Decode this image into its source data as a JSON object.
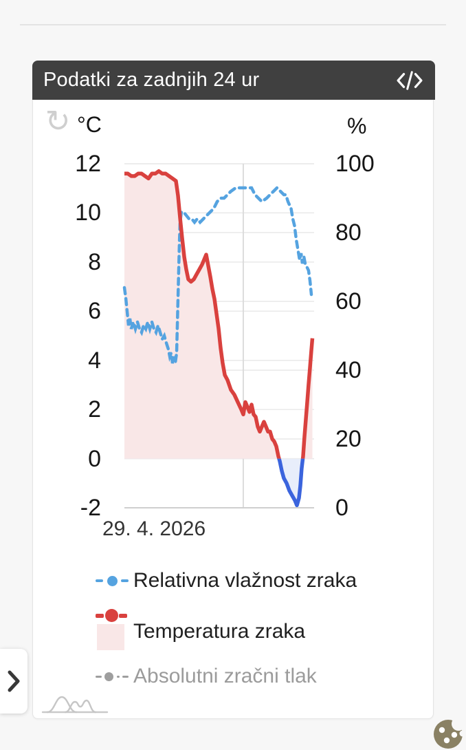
{
  "colors": {
    "header_bg": "#404040",
    "humidity": "#55a3e0",
    "temperature": "#d9413e",
    "temp_below_zero": "#3b64dd",
    "temp_fill": "#f9e7e7",
    "temp_fill_below": "#e8eefb",
    "disabled": "#9e9e9e",
    "grid": "#e9e9e9",
    "grid_dark": "#cfcfcf",
    "cookie": "#8a8164"
  },
  "card": {
    "header": {
      "title": "Podatki za zadnjih 24 ur"
    },
    "axes": {
      "left_unit": "°C",
      "right_unit": "%",
      "left_ticks": [
        12,
        10,
        8,
        6,
        4,
        2,
        0,
        -2
      ],
      "right_ticks": [
        100,
        80,
        60,
        40,
        20,
        0
      ],
      "x_label": "29. 4. 2026"
    },
    "legend": [
      {
        "label": "Relativna vlažnost zraka",
        "disabled": false
      },
      {
        "label": "Temperatura zraka",
        "disabled": false
      },
      {
        "label": "Absolutni zračni tlak",
        "disabled": true
      }
    ]
  },
  "chart_data": {
    "type": "line",
    "title": "Podatki za zadnjih 24 ur",
    "x_unit": "hours in 24h window",
    "x_date_line_hour": 15.04,
    "x_date_label": "29. 4. 2026",
    "ylim_left": [
      -2,
      12
    ],
    "ylim_right": [
      0,
      100
    ],
    "grid": true,
    "legend_position": "bottom",
    "series": [
      {
        "name": "Relativna vlažnost zraka",
        "unit": "%",
        "axis": "right",
        "style": "dashed",
        "points": [
          [
            0,
            64
          ],
          [
            0.17,
            61
          ],
          [
            0.35,
            57
          ],
          [
            0.52,
            53
          ],
          [
            0.7,
            55
          ],
          [
            0.87,
            52
          ],
          [
            1.13,
            54
          ],
          [
            1.39,
            52
          ],
          [
            1.65,
            54
          ],
          [
            1.91,
            52
          ],
          [
            2.17,
            51
          ],
          [
            2.43,
            53
          ],
          [
            2.7,
            52
          ],
          [
            2.96,
            54
          ],
          [
            3.22,
            52
          ],
          [
            3.48,
            54
          ],
          [
            3.74,
            52
          ],
          [
            4,
            51
          ],
          [
            4.26,
            53
          ],
          [
            4.52,
            51
          ],
          [
            4.78,
            49
          ],
          [
            5.04,
            50
          ],
          [
            5.3,
            48
          ],
          [
            5.57,
            46
          ],
          [
            5.74,
            44
          ],
          [
            5.91,
            45
          ],
          [
            6.09,
            42
          ],
          [
            6.26,
            44
          ],
          [
            6.43,
            42
          ],
          [
            6.61,
            45
          ],
          [
            6.7,
            53
          ],
          [
            6.78,
            61
          ],
          [
            6.87,
            69
          ],
          [
            6.96,
            77
          ],
          [
            7.04,
            83
          ],
          [
            7.22,
            86
          ],
          [
            7.48,
            86
          ],
          [
            7.83,
            85
          ],
          [
            8.17,
            84
          ],
          [
            8.52,
            84
          ],
          [
            8.87,
            83
          ],
          [
            9.22,
            84
          ],
          [
            9.57,
            83
          ],
          [
            10,
            84
          ],
          [
            10.43,
            85
          ],
          [
            10.87,
            86
          ],
          [
            11.3,
            87
          ],
          [
            11.74,
            89
          ],
          [
            12.17,
            90
          ],
          [
            12.61,
            90
          ],
          [
            13.04,
            91
          ],
          [
            13.48,
            92
          ],
          [
            14.09,
            93
          ],
          [
            14.7,
            93
          ],
          [
            15.22,
            93
          ],
          [
            15.65,
            93
          ],
          [
            16.09,
            93
          ],
          [
            16.52,
            91
          ],
          [
            16.96,
            90
          ],
          [
            17.39,
            89
          ],
          [
            18,
            90
          ],
          [
            18.43,
            91
          ],
          [
            18.87,
            92
          ],
          [
            19.3,
            93
          ],
          [
            19.74,
            92
          ],
          [
            20.17,
            91
          ],
          [
            20.43,
            91
          ],
          [
            20.7,
            89
          ],
          [
            21.09,
            87
          ],
          [
            21.3,
            84
          ],
          [
            21.52,
            82
          ],
          [
            21.74,
            78
          ],
          [
            21.96,
            75
          ],
          [
            22.17,
            72
          ],
          [
            22.35,
            74
          ],
          [
            22.52,
            71
          ],
          [
            22.7,
            73
          ],
          [
            22.87,
            71
          ],
          [
            23.09,
            70
          ],
          [
            23.3,
            69
          ],
          [
            23.48,
            66
          ],
          [
            23.65,
            62
          ]
        ]
      },
      {
        "name": "Temperatura zraka",
        "unit": "°C",
        "axis": "left",
        "style": "solid, filled to zero, blue below zero",
        "points": [
          [
            0,
            11.6
          ],
          [
            0.43,
            11.6
          ],
          [
            0.87,
            11.5
          ],
          [
            1.3,
            11.5
          ],
          [
            1.74,
            11.6
          ],
          [
            2.17,
            11.6
          ],
          [
            2.61,
            11.5
          ],
          [
            3.04,
            11.4
          ],
          [
            3.48,
            11.6
          ],
          [
            3.91,
            11.6
          ],
          [
            4.35,
            11.7
          ],
          [
            4.78,
            11.6
          ],
          [
            5.22,
            11.6
          ],
          [
            5.65,
            11.5
          ],
          [
            6.09,
            11.4
          ],
          [
            6.52,
            11.3
          ],
          [
            6.78,
            10.7
          ],
          [
            7.04,
            9.8
          ],
          [
            7.3,
            9
          ],
          [
            7.57,
            8.2
          ],
          [
            7.83,
            7.7
          ],
          [
            8.09,
            7.3
          ],
          [
            8.43,
            7.2
          ],
          [
            8.78,
            7.3
          ],
          [
            9.13,
            7.5
          ],
          [
            9.48,
            7.7
          ],
          [
            9.83,
            7.9
          ],
          [
            10.09,
            8.1
          ],
          [
            10.35,
            8.3
          ],
          [
            10.87,
            7.4
          ],
          [
            11.13,
            6.9
          ],
          [
            11.39,
            6.5
          ],
          [
            11.65,
            5.9
          ],
          [
            11.91,
            5.3
          ],
          [
            12.17,
            4.5
          ],
          [
            12.43,
            3.9
          ],
          [
            12.7,
            3.4
          ],
          [
            13.04,
            3.2
          ],
          [
            13.48,
            2.8
          ],
          [
            13.91,
            2.6
          ],
          [
            14.35,
            2.3
          ],
          [
            14.78,
            2
          ],
          [
            15.04,
            1.8
          ],
          [
            15.3,
            2.3
          ],
          [
            15.57,
            2.1
          ],
          [
            15.83,
            1.9
          ],
          [
            16.09,
            2.2
          ],
          [
            16.35,
            1.8
          ],
          [
            16.61,
            1.7
          ],
          [
            16.87,
            1.3
          ],
          [
            17.13,
            1.1
          ],
          [
            17.39,
            1.3
          ],
          [
            17.65,
            1.5
          ],
          [
            17.91,
            1.3
          ],
          [
            18.17,
            1.1
          ],
          [
            18.43,
            1.1
          ],
          [
            18.7,
            0.8
          ],
          [
            18.96,
            0.7
          ],
          [
            19.22,
            0.5
          ],
          [
            19.48,
            0.1
          ],
          [
            19.65,
            -0.1
          ],
          [
            19.91,
            -0.5
          ],
          [
            20.17,
            -0.8
          ],
          [
            20.52,
            -1
          ],
          [
            20.87,
            -1.3
          ],
          [
            21.22,
            -1.5
          ],
          [
            21.57,
            -1.7
          ],
          [
            21.83,
            -1.9
          ],
          [
            22.09,
            -1.6
          ],
          [
            22.26,
            -1.1
          ],
          [
            22.43,
            -0.4
          ],
          [
            22.61,
            0.1
          ],
          [
            22.78,
            0.9
          ],
          [
            22.96,
            1.6
          ],
          [
            23.13,
            2.3
          ],
          [
            23.3,
            3
          ],
          [
            23.48,
            3.7
          ],
          [
            23.65,
            4.4
          ],
          [
            23.78,
            4.9
          ]
        ]
      },
      {
        "name": "Absolutni zračni tlak",
        "axis": "none",
        "disabled": true,
        "points": []
      }
    ]
  }
}
